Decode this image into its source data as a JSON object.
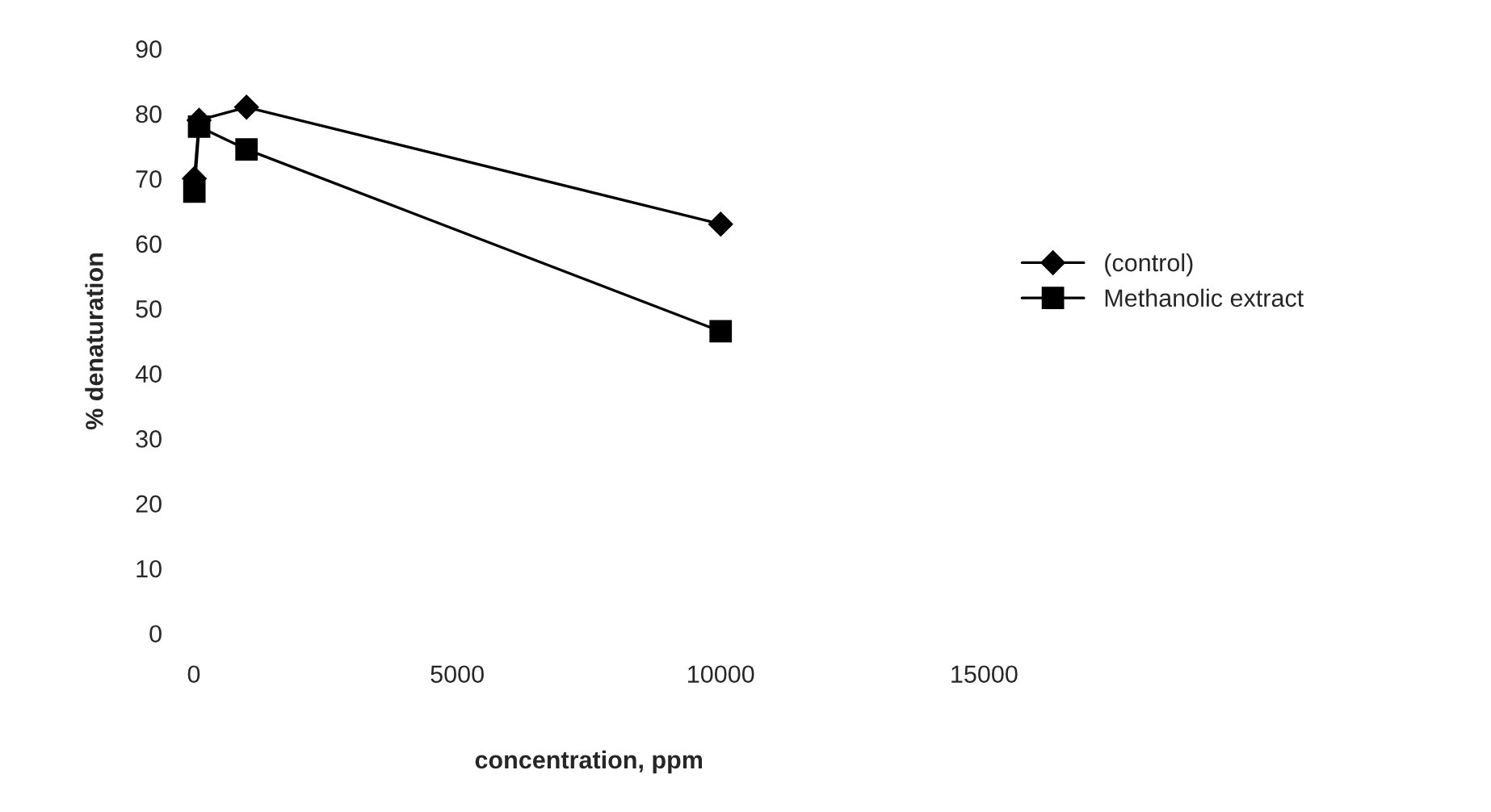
{
  "chart_data": {
    "type": "line",
    "xlabel": "concentration, ppm",
    "ylabel": "% denaturation",
    "xlim": [
      0,
      15000
    ],
    "xticks": [
      0,
      5000,
      10000,
      15000
    ],
    "ylim": [
      0,
      90
    ],
    "yticks": [
      0,
      10,
      20,
      30,
      40,
      50,
      60,
      70,
      80,
      90
    ],
    "grid": false,
    "legend": "right",
    "line_style": "solid",
    "series": [
      {
        "name": "(control)",
        "color": "#000000",
        "marker": "diamond",
        "x": [
          10,
          100,
          1000,
          10000
        ],
        "values": [
          70,
          79,
          81,
          63
        ]
      },
      {
        "name": "Methanolic extract",
        "color": "#000000",
        "marker": "square",
        "x": [
          10,
          100,
          1000,
          10000
        ],
        "values": [
          68,
          78,
          74.5,
          46.5
        ]
      }
    ]
  }
}
